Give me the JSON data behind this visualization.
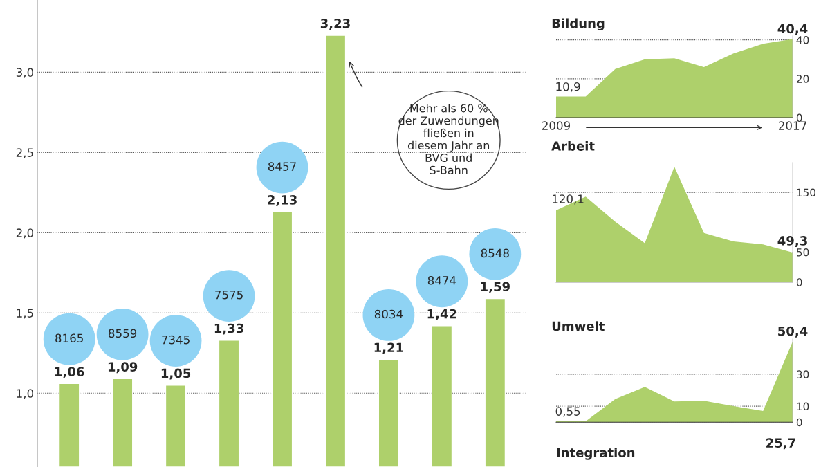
{
  "chart_data": [
    {
      "type": "bar",
      "categories": [
        null,
        null,
        null,
        null,
        null,
        null,
        null,
        null,
        null
      ],
      "ylim": [
        0.54,
        3.45
      ],
      "yticks": [
        {
          "value": 1.0,
          "label": "1,0"
        },
        {
          "value": 1.5,
          "label": "1,5"
        },
        {
          "value": 2.0,
          "label": "2,0"
        },
        {
          "value": 2.5,
          "label": "2,5"
        },
        {
          "value": 3.0,
          "label": "3,0"
        }
      ],
      "grid": "y",
      "tick_labels": "y",
      "annotations": [
        "Mehr als 60 %\nder Zuwendungen\nfließen in\ndiesem Jahr an\nBVG und\nS-Bahn",
        "8165",
        "8559",
        "7345",
        "7575",
        "8457",
        "8034",
        "8474",
        "8548"
      ],
      "series": [
        {
          "type": "bar",
          "color": "#aed06b",
          "values": [
            1.06,
            1.09,
            1.05,
            1.33,
            2.13,
            3.23,
            1.21,
            1.42,
            1.59
          ],
          "value_labels": [
            "1,06",
            "1,09",
            "1,05",
            "1,33",
            "2,13",
            "3,23",
            "1,21",
            "1,42",
            "1,59"
          ]
        }
      ]
    },
    {
      "type": "area",
      "title": "Bildung",
      "x": [
        2009,
        2010,
        2011,
        2012,
        2013,
        2014,
        2015,
        2016,
        2017
      ],
      "xlim": [
        2009,
        2017
      ],
      "xticks": [
        2009,
        2017
      ],
      "ylim": [
        0,
        42
      ],
      "yticks": [
        0,
        20,
        40
      ],
      "grid": "y",
      "series": [
        {
          "color": "#aed06b",
          "values": [
            10.9,
            10.9,
            25,
            30,
            30.5,
            26,
            33,
            38,
            40.4
          ],
          "value_labels": [
            "10,9",
            null,
            null,
            null,
            null,
            null,
            null,
            null,
            "40,4"
          ]
        }
      ]
    },
    {
      "type": "area",
      "title": "Arbeit",
      "x": [
        2009,
        2010,
        2011,
        2012,
        2013,
        2014,
        2015,
        2016,
        2017
      ],
      "xlim": [
        2009,
        2017
      ],
      "ylim": [
        0,
        200
      ],
      "yticks": [
        0,
        50,
        150
      ],
      "grid": "y",
      "tick_labels": "y",
      "series": [
        {
          "color": "#aed06b",
          "values": [
            120.1,
            143,
            101,
            65,
            193,
            82,
            68,
            63,
            49.3
          ],
          "value_labels": [
            "120,1",
            null,
            null,
            null,
            null,
            null,
            null,
            null,
            "49,3"
          ]
        }
      ]
    },
    {
      "type": "area",
      "title": "Umwelt",
      "x": [
        2009,
        2010,
        2011,
        2012,
        2013,
        2014,
        2015,
        2016,
        2017
      ],
      "xlim": [
        2009,
        2017
      ],
      "ylim": [
        0,
        52
      ],
      "yticks": [
        0,
        10,
        30
      ],
      "grid": "y",
      "tick_labels": "y",
      "series": [
        {
          "color": "#aed06b",
          "values": [
            0.55,
            0.55,
            14.5,
            22,
            13,
            13.4,
            10,
            7,
            50.4
          ],
          "value_labels": [
            "0,55",
            null,
            null,
            null,
            null,
            null,
            null,
            null,
            "50,4"
          ]
        }
      ]
    },
    {
      "type": "other",
      "title": "Integration",
      "annotations": [
        "25,7"
      ]
    }
  ]
}
